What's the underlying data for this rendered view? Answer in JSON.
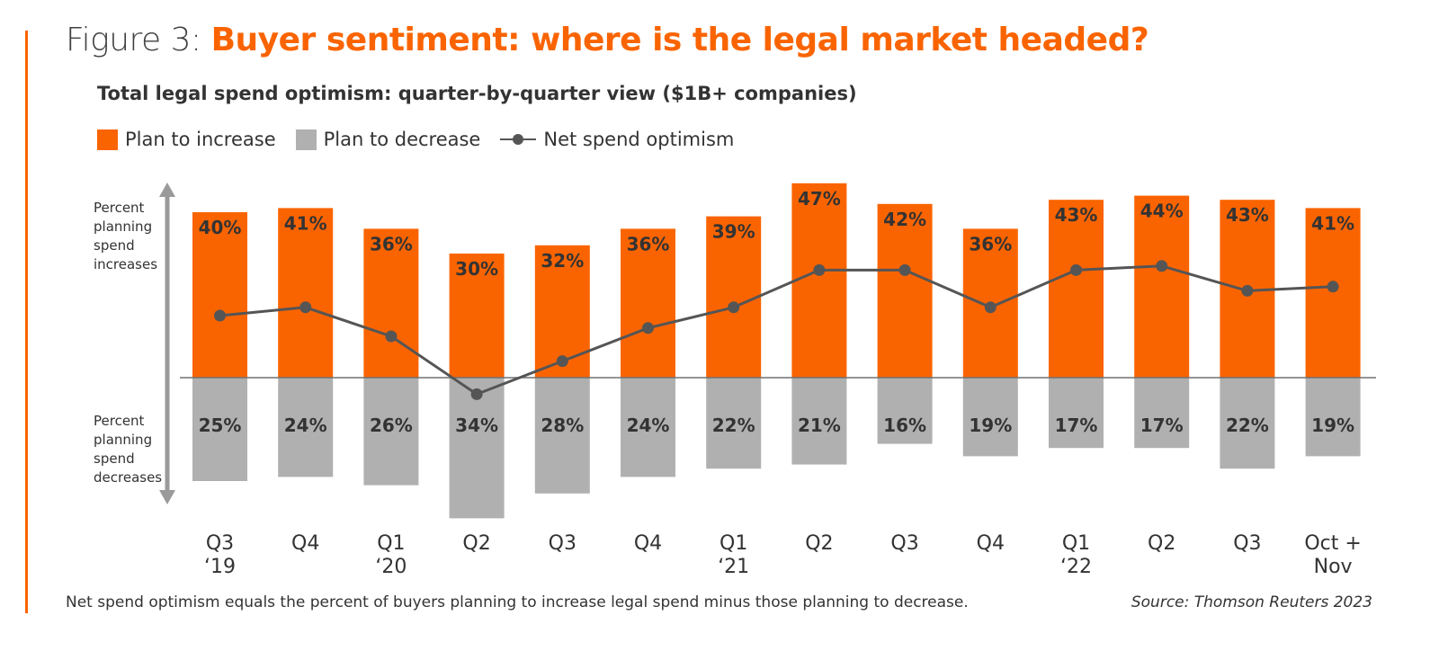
{
  "title": {
    "prefix": "Figure 3:",
    "main": "Buyer sentiment: where is the legal market headed?"
  },
  "subtitle": "Total legal spend optimism: quarter-by-quarter view ($1B+ companies)",
  "legend": {
    "increase": "Plan to increase",
    "decrease": "Plan to decrease",
    "net": "Net spend optimism"
  },
  "axis": {
    "upper_label": "Percent\nplanning\nspend\nincreases",
    "lower_label": "Percent\nplanning\nspend\ndecreases"
  },
  "colors": {
    "increase": "#fa6400",
    "decrease": "#b0b0b0",
    "net_line": "#555555",
    "accent": "#fa6400"
  },
  "footnote": "Net spend optimism equals the percent of buyers planning to increase legal spend minus those planning to decrease.",
  "source": "Source: Thomson Reuters 2023",
  "chart_data": {
    "type": "bar",
    "categories": [
      "Q3\n‘19",
      "Q4",
      "Q1\n‘20",
      "Q2",
      "Q3",
      "Q4",
      "Q1\n‘21",
      "Q2",
      "Q3",
      "Q4",
      "Q1\n‘22",
      "Q2",
      "Q3",
      "Oct +\nNov"
    ],
    "series": [
      {
        "name": "Plan to increase",
        "values": [
          40,
          41,
          36,
          30,
          32,
          36,
          39,
          47,
          42,
          36,
          43,
          44,
          43,
          41
        ]
      },
      {
        "name": "Plan to decrease",
        "values": [
          25,
          24,
          26,
          34,
          28,
          24,
          22,
          21,
          16,
          19,
          17,
          17,
          22,
          19
        ]
      },
      {
        "name": "Net spend optimism",
        "type": "line",
        "values": [
          15,
          17,
          10,
          -4,
          4,
          12,
          17,
          26,
          26,
          17,
          26,
          27,
          21,
          22
        ]
      }
    ],
    "data_labels": {
      "increase": [
        "40%",
        "41%",
        "36%",
        "30%",
        "32%",
        "36%",
        "39%",
        "47%",
        "42%",
        "36%",
        "43%",
        "44%",
        "43%",
        "41%"
      ],
      "decrease": [
        "25%",
        "24%",
        "26%",
        "34%",
        "28%",
        "24%",
        "22%",
        "21%",
        "16%",
        "19%",
        "17%",
        "17%",
        "22%",
        "19%"
      ]
    },
    "ylim": [
      -34,
      47
    ]
  }
}
